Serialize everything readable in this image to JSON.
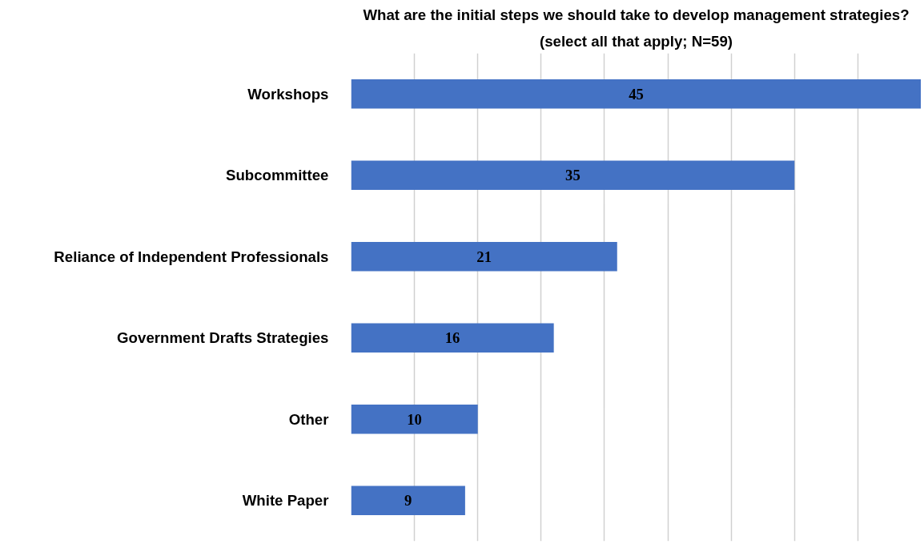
{
  "chart_data": {
    "type": "bar",
    "orientation": "horizontal",
    "title": "What are the initial steps we should take to develop management strategies?",
    "subtitle": "(select all that apply; N=59)",
    "categories": [
      "Workshops",
      "Subcommittee",
      "Reliance of Independent Professionals",
      "Government Drafts Strategies",
      "Other",
      "White Paper"
    ],
    "values": [
      45,
      35,
      21,
      16,
      10,
      9
    ],
    "color": "#4472c4",
    "data_labels": true,
    "xlim": [
      0,
      45
    ],
    "grid": "x",
    "tick_labels": "y"
  }
}
